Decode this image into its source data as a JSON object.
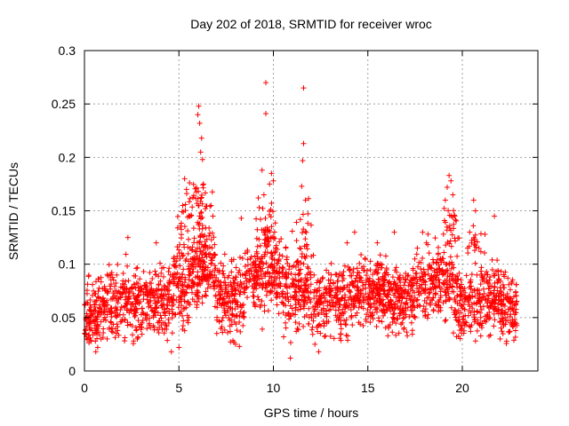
{
  "chart_data": {
    "type": "scatter",
    "title": "Day 202 of 2018, SRMTID for receiver wroc",
    "xlabel": "GPS time / hours",
    "ylabel": "SRMTID / TECUs",
    "xlim": [
      0,
      24
    ],
    "ylim": [
      0,
      0.3
    ],
    "xticks": [
      0,
      5,
      10,
      15,
      20
    ],
    "xtick_labels": [
      "0",
      "5",
      "10",
      "15",
      "20"
    ],
    "yticks": [
      0,
      0.05,
      0.1,
      0.15,
      0.2,
      0.25,
      0.3
    ],
    "ytick_labels": [
      "0",
      "0.05",
      "0.1",
      "0.15",
      "0.2",
      "0.25",
      "0.3"
    ],
    "grid": true,
    "legend": "none",
    "marker": "+",
    "marker_color": "#ff0000",
    "series": [
      {
        "name": "SRMTID",
        "points": [
          [
            6.0,
            0.24
          ],
          [
            6.05,
            0.248
          ],
          [
            6.1,
            0.232
          ],
          [
            6.2,
            0.218
          ],
          [
            6.15,
            0.205
          ],
          [
            6.25,
            0.198
          ],
          [
            5.3,
            0.18
          ],
          [
            5.4,
            0.17
          ],
          [
            5.2,
            0.155
          ],
          [
            6.3,
            0.175
          ],
          [
            9.6,
            0.27
          ],
          [
            9.6,
            0.241
          ],
          [
            11.6,
            0.265
          ],
          [
            11.6,
            0.213
          ],
          [
            11.55,
            0.197
          ],
          [
            11.5,
            0.173
          ],
          [
            11.7,
            0.16
          ],
          [
            9.4,
            0.188
          ],
          [
            9.9,
            0.185
          ],
          [
            9.8,
            0.175
          ],
          [
            10.0,
            0.178
          ],
          [
            9.5,
            0.165
          ],
          [
            9.2,
            0.162
          ],
          [
            8.3,
            0.143
          ],
          [
            19.3,
            0.183
          ],
          [
            19.4,
            0.178
          ],
          [
            19.2,
            0.172
          ],
          [
            19.5,
            0.165
          ],
          [
            19.1,
            0.16
          ],
          [
            19.6,
            0.145
          ],
          [
            20.6,
            0.16
          ],
          [
            20.7,
            0.15
          ],
          [
            21.7,
            0.145
          ],
          [
            21.2,
            0.128
          ],
          [
            10.9,
            0.012
          ],
          [
            12.2,
            0.025
          ],
          [
            12.4,
            0.018
          ],
          [
            4.6,
            0.018
          ],
          [
            5.0,
            0.022
          ],
          [
            0.6,
            0.018
          ],
          [
            0.7,
            0.022
          ],
          [
            8.0,
            0.025
          ],
          [
            8.2,
            0.023
          ],
          [
            0.15,
            0.03
          ],
          [
            2.6,
            0.028
          ],
          [
            20.7,
            0.028
          ],
          [
            22.0,
            0.03
          ],
          [
            1.2,
            0.03
          ],
          [
            6.8,
            0.145
          ],
          [
            6.7,
            0.155
          ],
          [
            2.3,
            0.125
          ],
          [
            3.8,
            0.12
          ],
          [
            13.9,
            0.12
          ],
          [
            14.3,
            0.13
          ],
          [
            15.5,
            0.12
          ],
          [
            16.4,
            0.13
          ],
          [
            17.9,
            0.13
          ],
          [
            18.1,
            0.12
          ]
        ],
        "bulk": {
          "x_range": [
            0,
            22.9
          ],
          "y_range": [
            0.025,
            0.12
          ],
          "count": 2600
        }
      }
    ]
  }
}
